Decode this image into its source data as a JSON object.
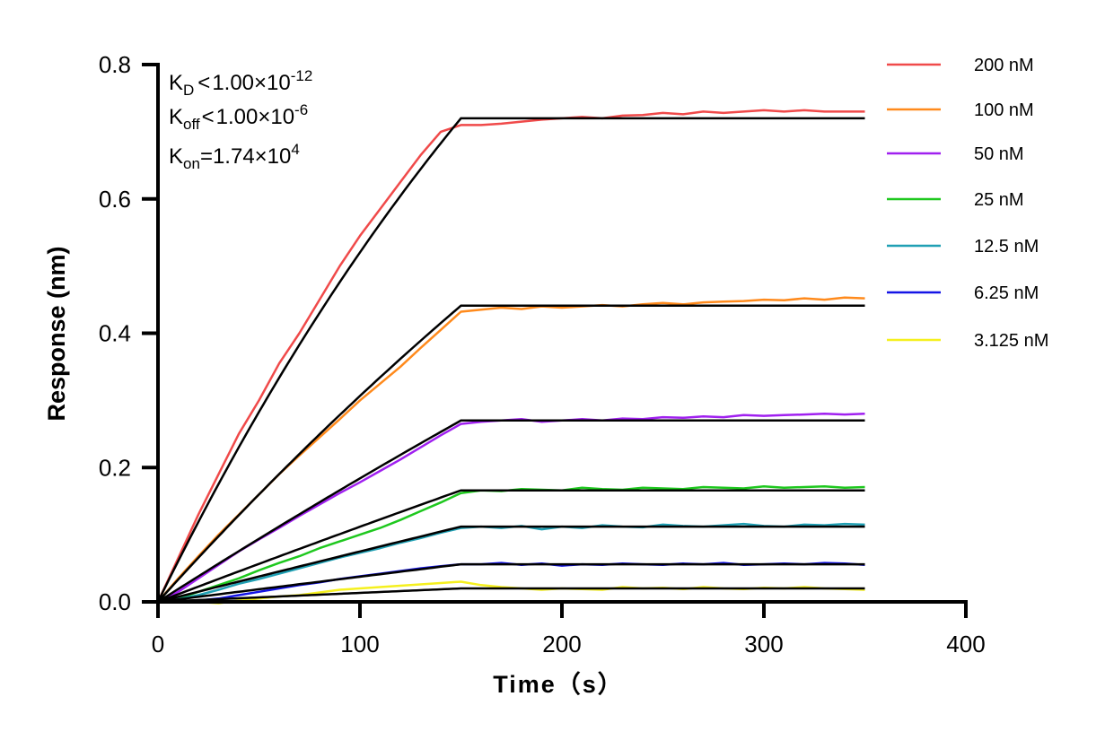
{
  "chart_data": {
    "type": "line",
    "title": "",
    "xlabel": "Time（s）",
    "ylabel": "Response (nm)",
    "xlim": [
      0,
      400
    ],
    "ylim": [
      0,
      0.8
    ],
    "xticks": [
      "0",
      "100",
      "200",
      "300",
      "400"
    ],
    "yticks": [
      "0.0",
      "0.2",
      "0.4",
      "0.6",
      "0.8"
    ],
    "grid": false,
    "legend_position": "right",
    "annotations": {
      "kd": {
        "label": "K",
        "sub": "D",
        "rel": "<",
        "value": "1.00×10",
        "exp": "-12"
      },
      "koff": {
        "label": "K",
        "sub": "off",
        "rel": "<",
        "value": "1.00×10",
        "exp": "-6"
      },
      "kon": {
        "label": "K",
        "sub": "on",
        "rel": "=",
        "value": "1.74×10",
        "exp": "4"
      }
    },
    "fit": {
      "color": "#000000",
      "kon": 17400,
      "association_end": 150,
      "end": 350
    },
    "x": [
      0,
      10,
      20,
      30,
      40,
      50,
      60,
      70,
      80,
      90,
      100,
      110,
      120,
      130,
      140,
      150,
      160,
      170,
      180,
      190,
      200,
      210,
      220,
      230,
      240,
      250,
      260,
      270,
      280,
      290,
      300,
      310,
      320,
      330,
      340,
      350
    ],
    "series": [
      {
        "name": "200 nM",
        "conc_nM": 200,
        "color": "#f04a4a",
        "fit_plateau": 0.72,
        "values": [
          0,
          0.065,
          0.13,
          0.19,
          0.25,
          0.3,
          0.355,
          0.4,
          0.45,
          0.5,
          0.545,
          0.585,
          0.625,
          0.665,
          0.7,
          0.71,
          0.71,
          0.712,
          0.715,
          0.718,
          0.72,
          0.722,
          0.72,
          0.724,
          0.725,
          0.728,
          0.726,
          0.73,
          0.728,
          0.73,
          0.732,
          0.73,
          0.732,
          0.73,
          0.73,
          0.73
        ]
      },
      {
        "name": "100 nM",
        "conc_nM": 100,
        "color": "#ff8a1c",
        "fit_plateau": 0.441,
        "values": [
          0,
          0.035,
          0.068,
          0.1,
          0.13,
          0.16,
          0.19,
          0.218,
          0.245,
          0.272,
          0.3,
          0.325,
          0.35,
          0.378,
          0.405,
          0.432,
          0.435,
          0.438,
          0.436,
          0.44,
          0.438,
          0.44,
          0.442,
          0.44,
          0.443,
          0.445,
          0.443,
          0.446,
          0.447,
          0.448,
          0.45,
          0.449,
          0.452,
          0.45,
          0.453,
          0.452
        ]
      },
      {
        "name": "50 nM",
        "conc_nM": 50,
        "color": "#a020f0",
        "fit_plateau": 0.27,
        "values": [
          0,
          0.015,
          0.035,
          0.055,
          0.075,
          0.093,
          0.11,
          0.128,
          0.145,
          0.162,
          0.178,
          0.195,
          0.212,
          0.23,
          0.248,
          0.265,
          0.268,
          0.27,
          0.272,
          0.268,
          0.27,
          0.272,
          0.27,
          0.273,
          0.272,
          0.275,
          0.274,
          0.276,
          0.275,
          0.278,
          0.277,
          0.278,
          0.279,
          0.28,
          0.279,
          0.28
        ]
      },
      {
        "name": "25 nM",
        "conc_nM": 25,
        "color": "#1ec81e",
        "fit_plateau": 0.166,
        "values": [
          0,
          0.005,
          0.015,
          0.025,
          0.035,
          0.047,
          0.058,
          0.068,
          0.08,
          0.09,
          0.1,
          0.11,
          0.122,
          0.135,
          0.148,
          0.162,
          0.166,
          0.165,
          0.168,
          0.167,
          0.166,
          0.17,
          0.168,
          0.167,
          0.17,
          0.169,
          0.168,
          0.171,
          0.17,
          0.169,
          0.172,
          0.17,
          0.171,
          0.172,
          0.17,
          0.171
        ]
      },
      {
        "name": "12.5 nM",
        "conc_nM": 12.5,
        "color": "#20a0b4",
        "fit_plateau": 0.112,
        "values": [
          0,
          0.004,
          0.01,
          0.018,
          0.027,
          0.034,
          0.042,
          0.05,
          0.058,
          0.066,
          0.073,
          0.08,
          0.088,
          0.095,
          0.103,
          0.11,
          0.112,
          0.11,
          0.113,
          0.108,
          0.112,
          0.11,
          0.114,
          0.112,
          0.111,
          0.115,
          0.113,
          0.112,
          0.114,
          0.116,
          0.113,
          0.112,
          0.115,
          0.114,
          0.116,
          0.115
        ]
      },
      {
        "name": "6.25 nM",
        "conc_nM": 6.25,
        "color": "#1414e6",
        "fit_plateau": 0.056,
        "values": [
          0,
          0,
          0.002,
          0.005,
          0.01,
          0.015,
          0.02,
          0.025,
          0.029,
          0.034,
          0.038,
          0.042,
          0.046,
          0.05,
          0.053,
          0.056,
          0.056,
          0.058,
          0.055,
          0.057,
          0.054,
          0.056,
          0.055,
          0.057,
          0.056,
          0.055,
          0.057,
          0.056,
          0.058,
          0.055,
          0.056,
          0.057,
          0.056,
          0.058,
          0.057,
          0.055
        ]
      },
      {
        "name": "3.125 nM",
        "conc_nM": 3.125,
        "color": "#f5f01e",
        "fit_plateau": 0.02,
        "values": [
          0,
          0,
          0,
          -0.002,
          0.002,
          0.005,
          0.008,
          0.01,
          0.014,
          0.018,
          0.02,
          0.022,
          0.024,
          0.026,
          0.028,
          0.03,
          0.025,
          0.022,
          0.02,
          0.018,
          0.02,
          0.019,
          0.018,
          0.022,
          0.02,
          0.021,
          0.019,
          0.022,
          0.02,
          0.019,
          0.021,
          0.02,
          0.022,
          0.02,
          0.019,
          0.018
        ]
      }
    ]
  }
}
